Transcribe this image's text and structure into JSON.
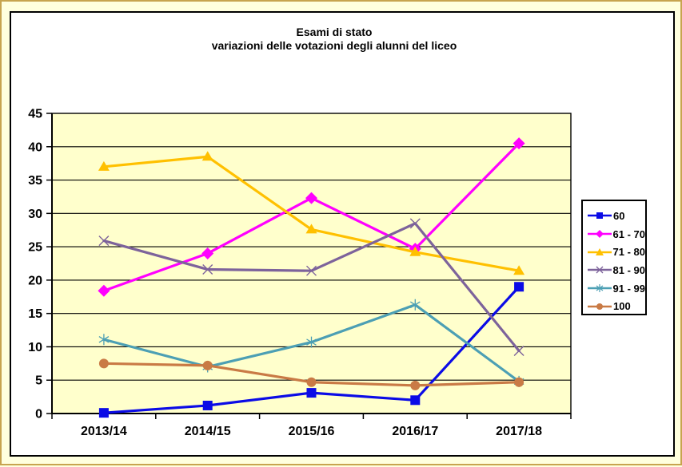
{
  "chart_data": {
    "type": "line",
    "title": "Esami di stato",
    "subtitle": "variazioni delle votazioni degli alunni del liceo",
    "categories": [
      "2013/14",
      "2014/15",
      "2015/16",
      "2016/17",
      "2017/18"
    ],
    "series": [
      {
        "name": "60",
        "color": "#0b0be6",
        "marker": "square",
        "values": [
          0.1,
          1.2,
          3.1,
          2.0,
          19.0
        ]
      },
      {
        "name": "61 - 70",
        "color": "#ff00ff",
        "marker": "diamond",
        "values": [
          18.4,
          24.0,
          32.3,
          24.7,
          40.5
        ]
      },
      {
        "name": "71 - 80",
        "color": "#ffc000",
        "marker": "triangle",
        "values": [
          37.0,
          38.5,
          27.6,
          24.2,
          21.4
        ]
      },
      {
        "name": "81 - 90",
        "color": "#7d639b",
        "marker": "x",
        "values": [
          25.9,
          21.6,
          21.4,
          28.5,
          9.4
        ]
      },
      {
        "name": "91 - 99",
        "color": "#4c9fb4",
        "marker": "star",
        "values": [
          11.1,
          7.0,
          10.7,
          16.3,
          4.8
        ]
      },
      {
        "name": "100",
        "color": "#c97a45",
        "marker": "circle",
        "values": [
          7.5,
          7.2,
          4.7,
          4.2,
          4.7
        ]
      }
    ],
    "ylim": [
      0,
      45
    ],
    "ytick_step": 5,
    "yticks": [
      0,
      5,
      10,
      15,
      20,
      25,
      30,
      35,
      40,
      45
    ],
    "grid": true,
    "legend_position": "right"
  },
  "colors": {
    "page_background": "#ffffde",
    "outer_border": "#c7a44f",
    "frame_background": "#ffffff",
    "frame_border": "#000000",
    "plot_background": "#ffffcc",
    "gridline": "#000000",
    "text": "#000000"
  }
}
